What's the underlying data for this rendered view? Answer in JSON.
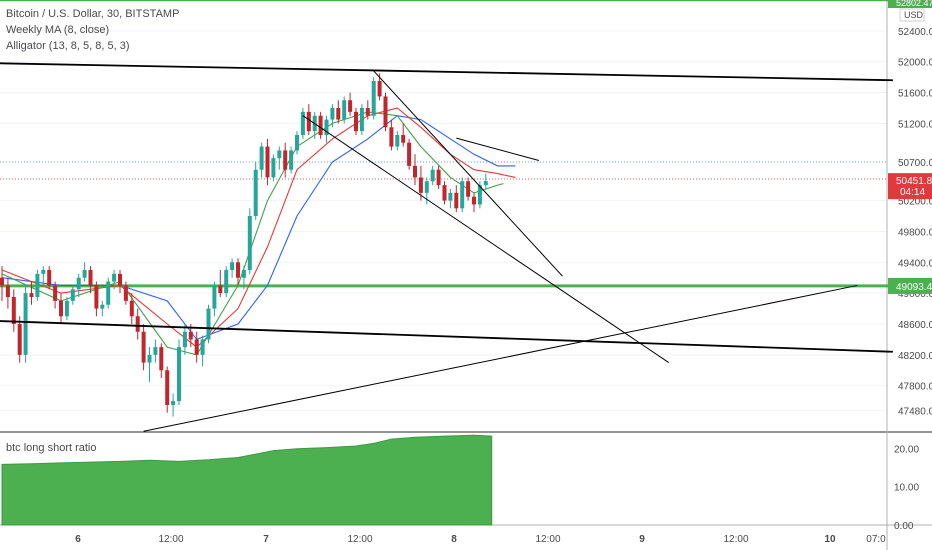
{
  "header": {
    "symbol_line": "Bitcoin / U.S. Dollar, 30, BITSTAMP",
    "indicator_1": "Weekly MA (8, close)",
    "indicator_2": "Alligator (13, 8, 5, 8, 5, 3)",
    "currency": "USD",
    "top_price": "52802.47"
  },
  "colors": {
    "up_candle": "#26a69a",
    "down_candle": "#c0262b",
    "support_resistance": "#4caf50",
    "alligator_jaw": "#2962ff",
    "alligator_teeth": "#e53935",
    "alligator_lips": "#43a047",
    "trendline": "#000000",
    "oscillator_fill": "#4caf50",
    "last_price_badge": "#e0393e"
  },
  "chart_data": [
    {
      "type": "candlestick",
      "title": "Bitcoin / U.S. Dollar, 30, BITSTAMP",
      "ylim": [
        47200,
        52800
      ],
      "y_ticks": [
        47480,
        47800,
        48200,
        48600,
        49000,
        49400,
        49800,
        50200,
        50700,
        51200,
        51600,
        52000,
        52400
      ],
      "y_tick_labels": [
        "47480.00",
        "47800.00",
        "48200.00",
        "48600.00",
        "49000.00",
        "49400.00",
        "49800.00",
        "50200.00",
        "50700.00",
        "51200.00",
        "51600.00",
        "52000.00",
        "52400.00"
      ],
      "x_ticks": [
        "6",
        "12:00",
        "7",
        "12:00",
        "8",
        "12:00",
        "9",
        "12:00",
        "10",
        "07:0"
      ],
      "last_price": "50451.82",
      "countdown": "04:14",
      "level_label": "49093.44",
      "levels": [
        49093.44,
        52802.47
      ],
      "candles_ohlc": [
        [
          49200,
          49350,
          48900,
          49100
        ],
        [
          49100,
          49200,
          48800,
          48950
        ],
        [
          48950,
          49050,
          48500,
          48600
        ],
        [
          48600,
          48700,
          48100,
          48200
        ],
        [
          48200,
          49100,
          48100,
          49000
        ],
        [
          49000,
          49150,
          48850,
          48950
        ],
        [
          48950,
          49300,
          48900,
          49250
        ],
        [
          49250,
          49350,
          49100,
          49300
        ],
        [
          49300,
          49350,
          49050,
          49100
        ],
        [
          49100,
          49150,
          48800,
          48900
        ],
        [
          48900,
          49000,
          48600,
          48700
        ],
        [
          48700,
          48950,
          48650,
          48900
        ],
        [
          48900,
          49100,
          48850,
          49050
        ],
        [
          49050,
          49250,
          48950,
          49200
        ],
        [
          49200,
          49400,
          49150,
          49300
        ],
        [
          49300,
          49350,
          49000,
          49100
        ],
        [
          49100,
          49150,
          48700,
          48800
        ],
        [
          48800,
          48900,
          48700,
          48850
        ],
        [
          48850,
          49200,
          48800,
          49150
        ],
        [
          49150,
          49300,
          49050,
          49250
        ],
        [
          49250,
          49300,
          49000,
          49100
        ],
        [
          49100,
          49150,
          48850,
          48900
        ],
        [
          48900,
          49000,
          48600,
          48700
        ],
        [
          48700,
          48800,
          48400,
          48500
        ],
        [
          48500,
          48600,
          48000,
          48100
        ],
        [
          48100,
          48300,
          47850,
          48200
        ],
        [
          48200,
          48400,
          48100,
          48300
        ],
        [
          48300,
          48350,
          47900,
          48000
        ],
        [
          48000,
          48050,
          47450,
          47550
        ],
        [
          47550,
          47700,
          47400,
          47600
        ],
        [
          47600,
          48400,
          47550,
          48300
        ],
        [
          48300,
          48600,
          48200,
          48500
        ],
        [
          48500,
          48600,
          48300,
          48400
        ],
        [
          48400,
          48500,
          48100,
          48200
        ],
        [
          48200,
          48450,
          48050,
          48400
        ],
        [
          48400,
          48850,
          48350,
          48800
        ],
        [
          48800,
          49150,
          48700,
          49100
        ],
        [
          49100,
          49300,
          48950,
          49000
        ],
        [
          49000,
          49350,
          48950,
          49300
        ],
        [
          49300,
          49450,
          49200,
          49400
        ],
        [
          49400,
          49450,
          49100,
          49200
        ],
        [
          49200,
          49350,
          49050,
          49300
        ],
        [
          49300,
          50100,
          49250,
          50000
        ],
        [
          50000,
          50700,
          49950,
          50600
        ],
        [
          50600,
          50950,
          50500,
          50900
        ],
        [
          50900,
          51000,
          50400,
          50500
        ],
        [
          50500,
          50800,
          50450,
          50750
        ],
        [
          50750,
          50900,
          50600,
          50850
        ],
        [
          50850,
          50950,
          50500,
          50600
        ],
        [
          50600,
          50900,
          50550,
          50850
        ],
        [
          50850,
          51100,
          50800,
          51050
        ],
        [
          51050,
          51400,
          51000,
          51350
        ],
        [
          51350,
          51450,
          51050,
          51100
        ],
        [
          51100,
          51350,
          51000,
          51300
        ],
        [
          51300,
          51350,
          51000,
          51050
        ],
        [
          51050,
          51300,
          50950,
          51250
        ],
        [
          51250,
          51450,
          51150,
          51400
        ],
        [
          51400,
          51500,
          51200,
          51250
        ],
        [
          51250,
          51550,
          51200,
          51500
        ],
        [
          51500,
          51600,
          51300,
          51350
        ],
        [
          51350,
          51400,
          51050,
          51100
        ],
        [
          51100,
          51450,
          51050,
          51400
        ],
        [
          51400,
          51500,
          51250,
          51300
        ],
        [
          51300,
          51800,
          51250,
          51750
        ],
        [
          51750,
          51850,
          51500,
          51550
        ],
        [
          51550,
          51600,
          51100,
          51150
        ],
        [
          51150,
          51250,
          50850,
          50900
        ],
        [
          50900,
          51100,
          50850,
          51050
        ],
        [
          51050,
          51200,
          50900,
          50950
        ],
        [
          50950,
          51000,
          50600,
          50650
        ],
        [
          50650,
          50800,
          50400,
          50500
        ],
        [
          50500,
          50650,
          50200,
          50300
        ],
        [
          50300,
          50500,
          50150,
          50450
        ],
        [
          50450,
          50650,
          50400,
          50600
        ],
        [
          50600,
          50650,
          50350,
          50400
        ],
        [
          50400,
          50450,
          50150,
          50200
        ],
        [
          50200,
          50350,
          50100,
          50300
        ],
        [
          50300,
          50400,
          50050,
          50100
        ],
        [
          50100,
          50500,
          50050,
          50450
        ],
        [
          50450,
          50500,
          50200,
          50250
        ],
        [
          50250,
          50300,
          50050,
          50150
        ],
        [
          50150,
          50450,
          50100,
          50400
        ],
        [
          50400,
          50550,
          50350,
          50451.82
        ]
      ],
      "series": [
        {
          "name": "Jaw",
          "points": [
            [
              0,
              49200
            ],
            [
              10,
              49100
            ],
            [
              20,
              49100
            ],
            [
              28,
              48900
            ],
            [
              33,
              48400
            ],
            [
              40,
              48600
            ],
            [
              45,
              49100
            ],
            [
              50,
              50000
            ],
            [
              56,
              50700
            ],
            [
              62,
              51000
            ],
            [
              67,
              51300
            ],
            [
              71,
              51250
            ],
            [
              76,
              51000
            ],
            [
              80,
              50800
            ],
            [
              84,
              50650
            ],
            [
              87,
              50650
            ]
          ]
        },
        {
          "name": "Teeth",
          "points": [
            [
              0,
              49300
            ],
            [
              10,
              49000
            ],
            [
              20,
              49100
            ],
            [
              28,
              48600
            ],
            [
              33,
              48300
            ],
            [
              40,
              48800
            ],
            [
              45,
              49600
            ],
            [
              50,
              50600
            ],
            [
              56,
              51000
            ],
            [
              62,
              51300
            ],
            [
              67,
              51400
            ],
            [
              71,
              51150
            ],
            [
              76,
              50800
            ],
            [
              80,
              50600
            ],
            [
              84,
              50550
            ],
            [
              87,
              50500
            ]
          ]
        },
        {
          "name": "Lips",
          "points": [
            [
              0,
              49250
            ],
            [
              10,
              48900
            ],
            [
              20,
              49150
            ],
            [
              28,
              48300
            ],
            [
              33,
              48200
            ],
            [
              40,
              49100
            ],
            [
              45,
              50200
            ],
            [
              50,
              50900
            ],
            [
              56,
              51200
            ],
            [
              62,
              51350
            ],
            [
              67,
              51300
            ],
            [
              71,
              50900
            ],
            [
              76,
              50500
            ],
            [
              80,
              50300
            ],
            [
              84,
              50400
            ],
            [
              85,
              50420
            ]
          ]
        }
      ],
      "trendlines": [
        {
          "from": [
            -1,
            51980
          ],
          "to": [
            151,
            51760
          ]
        },
        {
          "from": [
            -1,
            48640
          ],
          "to": [
            151,
            48240
          ]
        },
        {
          "from": [
            24,
            47210
          ],
          "to": [
            145,
            49100
          ]
        },
        {
          "from": [
            51,
            51300
          ],
          "to": [
            113,
            48100
          ]
        },
        {
          "from": [
            63,
            51880
          ],
          "to": [
            95,
            49220
          ]
        },
        {
          "from": [
            77,
            51010
          ],
          "to": [
            91,
            50720
          ]
        }
      ],
      "dotted_levels": [
        50700,
        50480
      ]
    },
    {
      "type": "area",
      "title": "btc long short ratio",
      "ylim": [
        0,
        24
      ],
      "y_ticks": [
        0,
        10,
        20
      ],
      "y_tick_labels": [
        "0.00",
        "10.00",
        "20.00"
      ],
      "points": [
        [
          0,
          15.8
        ],
        [
          5,
          16.0
        ],
        [
          10,
          16.2
        ],
        [
          15,
          16.4
        ],
        [
          20,
          16.6
        ],
        [
          25,
          16.9
        ],
        [
          30,
          16.6
        ],
        [
          35,
          17.0
        ],
        [
          40,
          17.6
        ],
        [
          43,
          18.5
        ],
        [
          46,
          19.4
        ],
        [
          50,
          19.9
        ],
        [
          55,
          20.2
        ],
        [
          60,
          20.6
        ],
        [
          63,
          21.3
        ],
        [
          66,
          22.4
        ],
        [
          70,
          22.9
        ],
        [
          75,
          23.2
        ],
        [
          80,
          23.4
        ],
        [
          83,
          23.2
        ]
      ]
    }
  ]
}
